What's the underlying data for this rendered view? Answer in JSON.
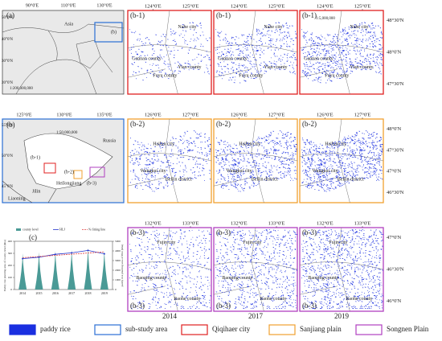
{
  "overview": {
    "label": "(a)",
    "region": "Asia",
    "inset": "(b)",
    "scale": "1:200,000,000",
    "lon_ticks": [
      "90°0'E",
      "110°0'E",
      "130°0'E"
    ],
    "lat_ticks": [
      "50°0'N",
      "40°0'N",
      "30°0'N",
      "20°0'N"
    ]
  },
  "study_area": {
    "label": "(b)",
    "scale": "1:50,000,000",
    "lon_ticks": [
      "125°0'E",
      "130°0'E",
      "135°0'E"
    ],
    "lat_ticks": [
      "55°0'N",
      "50°0'N",
      "45°0'N"
    ],
    "places": [
      "Russia",
      "Heilongjiang",
      "Jilin",
      "Liaoning"
    ],
    "subareas": [
      "(b-1)",
      "(b-2)",
      "(b-3)"
    ]
  },
  "rows": [
    {
      "label": "(b-1)",
      "lon_ticks": [
        "124°0'E",
        "125°0'E"
      ],
      "lat_ticks": [
        "48°30'N",
        "48°0'N",
        "47°30'N"
      ],
      "places": [
        "Nahe city",
        "Gannan county",
        "Yian county",
        "Fuyu county"
      ],
      "scale": "1:5,000,000"
    },
    {
      "label": "(b-2)",
      "lon_ticks": [
        "126°0'E",
        "127°0'E"
      ],
      "lat_ticks": [
        "48°0'N",
        "47°30'N",
        "47°0'N",
        "46°30'N"
      ],
      "places": [
        "Hailun city",
        "Wangkui city",
        "Beilin district"
      ]
    },
    {
      "label": "(b-3)",
      "lon_ticks": [
        "132°0'E",
        "133°0'E"
      ],
      "lat_ticks": [
        "47°0'N",
        "46°30'N",
        "46°0'N"
      ],
      "places": [
        "Fujin city",
        "Baoqing county",
        "Raohe county"
      ]
    }
  ],
  "years": [
    "2014",
    "2017",
    "2019"
  ],
  "legend": [
    "paddy rice",
    "sub-study area",
    "Qiqihaer city",
    "Sanjiang plain",
    "Songnen Plain"
  ],
  "chart_data": {
    "type": "line",
    "label": "(c)",
    "x": [
      "2014",
      "2015",
      "2016",
      "2017",
      "2018",
      "2019"
    ],
    "ylabel": "Paddy rice planting area of county level (kha)",
    "y2label": "paddy rice planting area of HLJ (kha)",
    "ylim": [
      0,
      400
    ],
    "yticks": [
      0,
      100,
      200,
      300,
      400
    ],
    "y2lim": [
      0,
      5000
    ],
    "y2ticks": [
      0,
      1000,
      2000,
      3000,
      4000,
      5000
    ],
    "series": [
      {
        "name": "county level",
        "color": "#4a9a96",
        "values": [
          300,
          310,
          320,
          330,
          345,
          320
        ]
      },
      {
        "name": "HLJ",
        "color": "#2233cc",
        "axis": "y2",
        "values": [
          3200,
          3350,
          3650,
          3800,
          4050,
          3700
        ]
      },
      {
        "name": "% fitting line",
        "color": "#e04040",
        "axis": "y2",
        "values": [
          3300,
          3420,
          3540,
          3660,
          3780,
          3900
        ]
      }
    ]
  }
}
